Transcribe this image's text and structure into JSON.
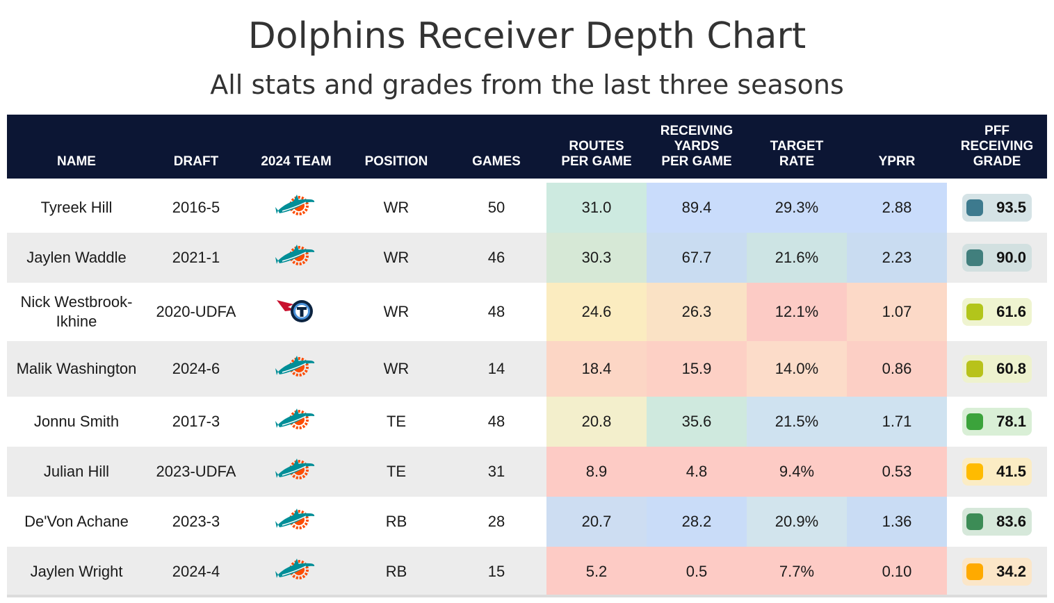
{
  "title": "Dolphins Receiver Depth Chart",
  "subtitle": "All stats and grades from the last three seasons",
  "columns": [
    {
      "key": "name",
      "label": "NAME"
    },
    {
      "key": "draft",
      "label": "DRAFT"
    },
    {
      "key": "team",
      "label": "2024 TEAM"
    },
    {
      "key": "position",
      "label": "POSITION"
    },
    {
      "key": "games",
      "label": "GAMES"
    },
    {
      "key": "routes",
      "label": "ROUTES\nPER GAME"
    },
    {
      "key": "yards",
      "label": "RECEIVING\nYARDS\nPER GAME"
    },
    {
      "key": "target",
      "label": "TARGET\nRATE"
    },
    {
      "key": "yprr",
      "label": "YPRR"
    },
    {
      "key": "grade",
      "label": "PFF\nRECEIVING\nGRADE"
    }
  ],
  "colors": {
    "header_bg": "#0c1634",
    "row_alt": "#ececec",
    "row_plain": "#ffffff",
    "dolphins_teal": "#008e97",
    "dolphins_orange": "#fc4c02",
    "titans_navy": "#0c2340",
    "titans_blue": "#4b92db",
    "titans_red": "#c8102e"
  },
  "chart_data": {
    "type": "table",
    "title": "Dolphins Receiver Depth Chart",
    "subtitle": "All stats and grades from the last three seasons",
    "rows": [
      {
        "name": "Tyreek Hill",
        "draft": "2016-5",
        "team": "dolphins-logo",
        "position": "WR",
        "games": "50",
        "routes": "31.0",
        "yards": "89.4",
        "target": "29.3%",
        "yprr": "2.88",
        "grade": "93.5",
        "colors": {
          "routes": "#cdeae0",
          "yards": "#c9dcfb",
          "target": "#c9dcfb",
          "yprr": "#c9dcfb",
          "grade_dot": "#3d7a8e",
          "grade_bg": "#d5e3e6"
        }
      },
      {
        "name": "Jaylen Waddle",
        "draft": "2021-1",
        "team": "dolphins-logo",
        "position": "WR",
        "games": "46",
        "routes": "30.3",
        "yards": "67.7",
        "target": "21.6%",
        "yprr": "2.23",
        "grade": "90.0",
        "colors": {
          "routes": "#d6e8d6",
          "yards": "#c9dcf1",
          "target": "#cde4e4",
          "yprr": "#c9dcf1",
          "grade_dot": "#417f7d",
          "grade_bg": "#d2e0e0"
        }
      },
      {
        "name": "Nick Westbrook-Ikhine",
        "draft": "2020-UDFA",
        "team": "titans-logo",
        "position": "WR",
        "games": "48",
        "routes": "24.6",
        "yards": "26.3",
        "target": "12.1%",
        "yprr": "1.07",
        "grade": "61.6",
        "colors": {
          "routes": "#fbecc0",
          "yards": "#fae2c5",
          "target": "#fccbc5",
          "yprr": "#fcd9c7",
          "grade_dot": "#b2c51b",
          "grade_bg": "#eff4d0"
        }
      },
      {
        "name": "Malik Washington",
        "draft": "2024-6",
        "team": "dolphins-logo",
        "position": "WR",
        "games": "14",
        "routes": "18.4",
        "yards": "15.9",
        "target": "14.0%",
        "yprr": "0.86",
        "grade": "60.8",
        "colors": {
          "routes": "#fcd6c5",
          "yards": "#fdd0c5",
          "target": "#fcdcc9",
          "yprr": "#fccfc5",
          "grade_dot": "#b8c21a",
          "grade_bg": "#eef2ce"
        }
      },
      {
        "name": "Jonnu Smith",
        "draft": "2017-3",
        "team": "dolphins-logo",
        "position": "TE",
        "games": "48",
        "routes": "20.8",
        "yards": "35.6",
        "target": "21.5%",
        "yprr": "1.71",
        "grade": "78.1",
        "colors": {
          "routes": "#f3efcc",
          "yards": "#cfe9de",
          "target": "#cfe2f0",
          "yprr": "#cfe2f0",
          "grade_dot": "#3ba33b",
          "grade_bg": "#d9efd6"
        }
      },
      {
        "name": "Julian Hill",
        "draft": "2023-UDFA",
        "team": "dolphins-logo",
        "position": "TE",
        "games": "31",
        "routes": "8.9",
        "yards": "4.8",
        "target": "9.4%",
        "yprr": "0.53",
        "grade": "41.5",
        "colors": {
          "routes": "#fdcbc5",
          "yards": "#fdcbc5",
          "target": "#fdcbc5",
          "yprr": "#fdcbc5",
          "grade_dot": "#ffbb00",
          "grade_bg": "#fbecc4"
        }
      },
      {
        "name": "De'Von Achane",
        "draft": "2023-3",
        "team": "dolphins-logo",
        "position": "RB",
        "games": "28",
        "routes": "20.7",
        "yards": "28.2",
        "target": "20.9%",
        "yprr": "1.36",
        "grade": "83.6",
        "colors": {
          "routes": "#cdddf2",
          "yards": "#c9dcf8",
          "target": "#d2e4ed",
          "yprr": "#c9dcf4",
          "grade_dot": "#3c8c56",
          "grade_bg": "#d6e8da"
        }
      },
      {
        "name": "Jaylen Wright",
        "draft": "2024-4",
        "team": "dolphins-logo",
        "position": "RB",
        "games": "15",
        "routes": "5.2",
        "yards": "0.5",
        "target": "7.7%",
        "yprr": "0.10",
        "grade": "34.2",
        "colors": {
          "routes": "#fdcbc5",
          "yards": "#fdcbc5",
          "target": "#fdcbc5",
          "yprr": "#fdcbc5",
          "grade_dot": "#ffaa00",
          "grade_bg": "#fbe6c8"
        }
      }
    ]
  }
}
